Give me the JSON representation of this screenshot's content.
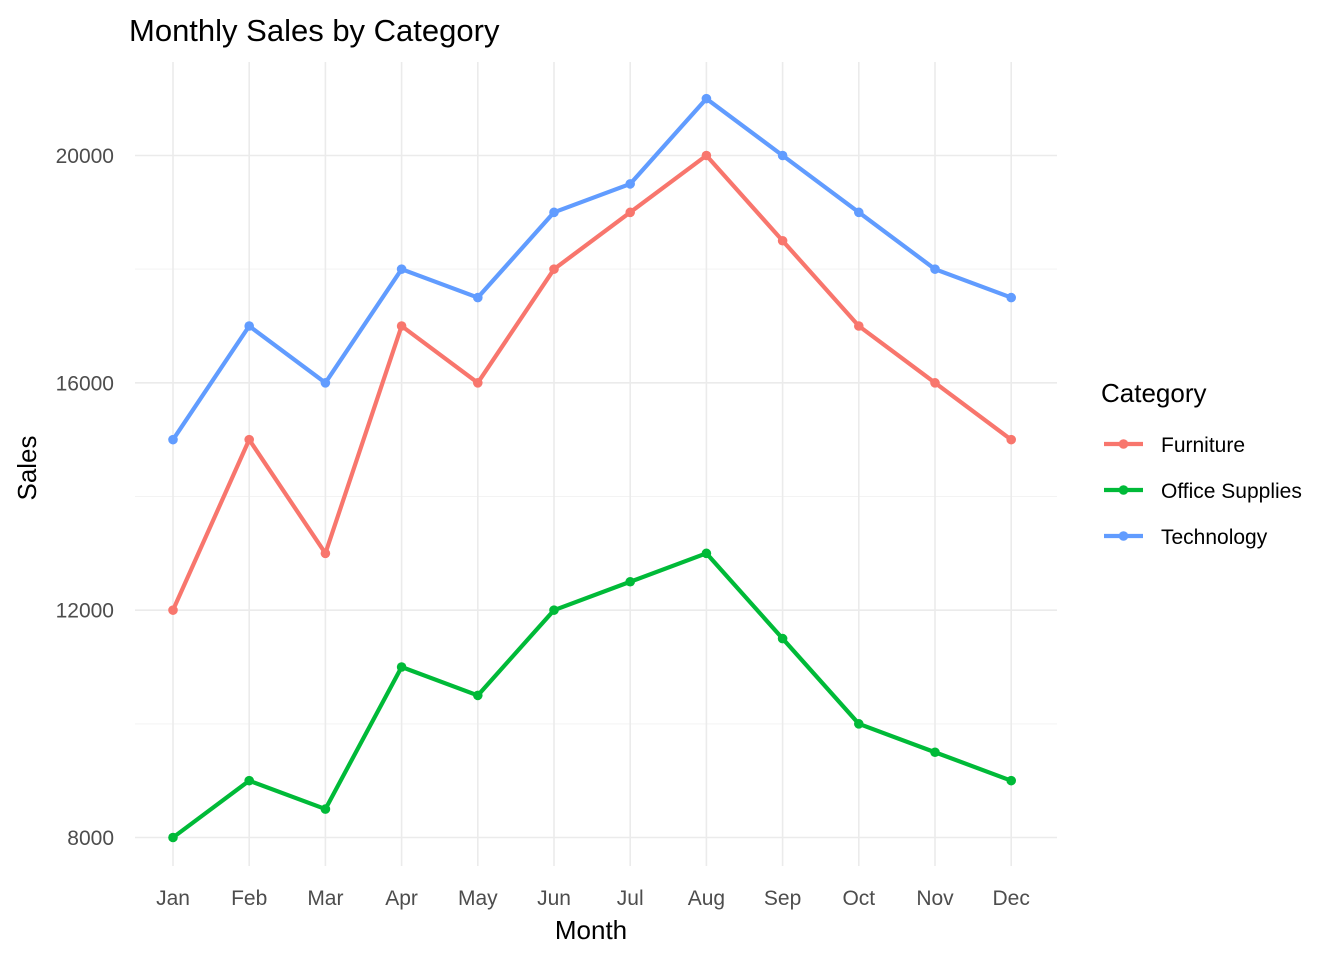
{
  "chart_data": {
    "type": "line",
    "title": "Monthly Sales by Category",
    "xlabel": "Month",
    "ylabel": "Sales",
    "categories": [
      "Jan",
      "Feb",
      "Mar",
      "Apr",
      "May",
      "Jun",
      "Jul",
      "Aug",
      "Sep",
      "Oct",
      "Nov",
      "Dec"
    ],
    "ylim": [
      7500,
      21500
    ],
    "yticks": [
      8000,
      12000,
      16000,
      20000
    ],
    "ytick_labels": [
      "8000",
      "12000",
      "16000",
      "20000"
    ],
    "grid": true,
    "legend": {
      "title": "Category",
      "placement": "right"
    },
    "series": [
      {
        "name": "Furniture",
        "color": "#F8766D",
        "values": [
          12000,
          15000,
          13000,
          17000,
          16000,
          18000,
          19000,
          20000,
          18500,
          17000,
          16000,
          15000
        ]
      },
      {
        "name": "Office Supplies",
        "color": "#00BA38",
        "values": [
          8000,
          9000,
          8500,
          11000,
          10500,
          12000,
          12500,
          13000,
          11500,
          10000,
          9500,
          9000
        ]
      },
      {
        "name": "Technology",
        "color": "#619CFF",
        "values": [
          15000,
          17000,
          16000,
          18000,
          17500,
          19000,
          19500,
          21000,
          20000,
          19000,
          18000,
          17500
        ]
      }
    ]
  }
}
